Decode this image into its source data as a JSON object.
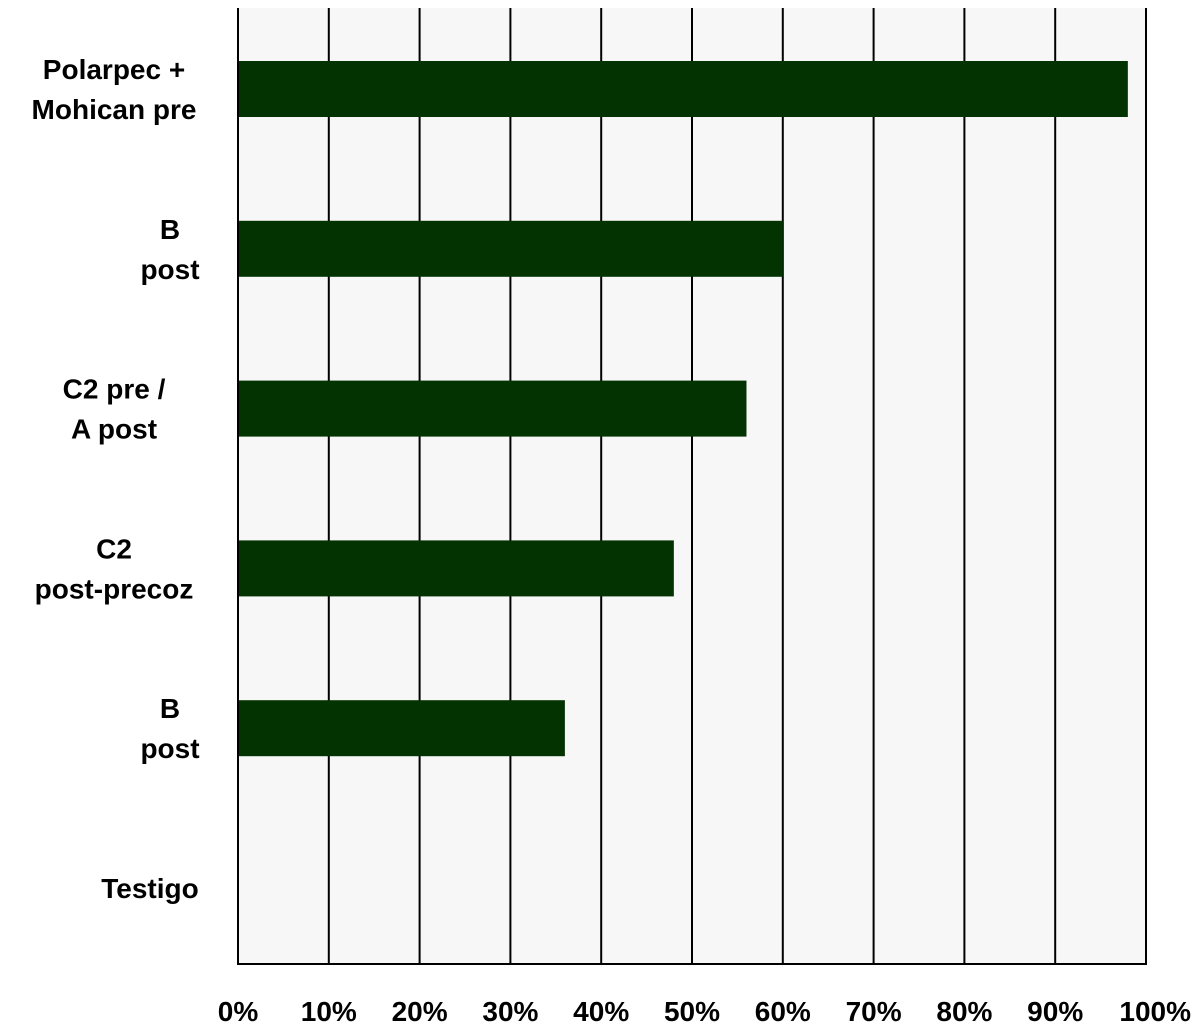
{
  "chart_data": {
    "type": "bar",
    "orientation": "horizontal",
    "categories": [
      [
        "Polarpec +",
        "Mohican pre"
      ],
      [
        "B",
        "post"
      ],
      [
        "C2 pre /",
        "A post"
      ],
      [
        "C2",
        "post-precoz"
      ],
      [
        "B",
        "post"
      ],
      [
        "Testigo"
      ]
    ],
    "values": [
      98,
      60,
      56,
      48,
      36,
      0
    ],
    "xlim": [
      0,
      100
    ],
    "x_ticks": [
      0,
      10,
      20,
      30,
      40,
      50,
      60,
      70,
      80,
      90,
      100
    ],
    "x_tick_labels": [
      "0%",
      "10%",
      "20%",
      "30%",
      "40%",
      "50%",
      "60%",
      "70%",
      "80%",
      "90%",
      "100%"
    ],
    "title": "",
    "xlabel": "",
    "ylabel": "",
    "grid": "vertical",
    "legend": "none",
    "colors": {
      "bar": "#033300",
      "plot_background": "#f7f7f7",
      "gridline": "#000000"
    }
  }
}
